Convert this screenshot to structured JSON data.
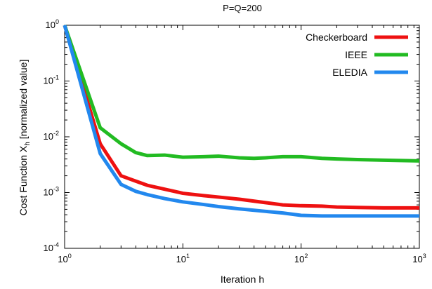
{
  "chart_data": {
    "type": "line",
    "title": "P=Q=200",
    "xlabel": "Iteration h",
    "ylabel_main": "Cost Function X",
    "ylabel_sub": "h",
    "ylabel_tail": " [normalized value]",
    "xscale": "log",
    "yscale": "log",
    "xlim": [
      1,
      1000
    ],
    "ylim": [
      0.0001,
      1
    ],
    "grid": false,
    "legend_position": "top-right",
    "x_ticks": [
      {
        "base": "10",
        "exp": "0",
        "value": 1
      },
      {
        "base": "10",
        "exp": "1",
        "value": 10
      },
      {
        "base": "10",
        "exp": "2",
        "value": 100
      },
      {
        "base": "10",
        "exp": "3",
        "value": 1000
      }
    ],
    "y_ticks": [
      {
        "base": "10",
        "exp": "-4",
        "value": 0.0001
      },
      {
        "base": "10",
        "exp": "-3",
        "value": 0.001
      },
      {
        "base": "10",
        "exp": "-2",
        "value": 0.01
      },
      {
        "base": "10",
        "exp": "-1",
        "value": 0.1
      },
      {
        "base": "10",
        "exp": "0",
        "value": 1
      }
    ],
    "series": [
      {
        "name": "Checkerboard",
        "color": "#ee1111",
        "points": [
          [
            1,
            1.0
          ],
          [
            2,
            0.0075
          ],
          [
            3,
            0.002
          ],
          [
            4,
            0.0016
          ],
          [
            5,
            0.00135
          ],
          [
            7,
            0.00115
          ],
          [
            10,
            0.00097
          ],
          [
            15,
            0.00088
          ],
          [
            20,
            0.00083
          ],
          [
            30,
            0.00076
          ],
          [
            50,
            0.00066
          ],
          [
            70,
            0.0006
          ],
          [
            100,
            0.00058
          ],
          [
            150,
            0.00057
          ],
          [
            200,
            0.00055
          ],
          [
            300,
            0.00054
          ],
          [
            500,
            0.00053
          ],
          [
            1000,
            0.00053
          ]
        ]
      },
      {
        "name": "IEEE",
        "color": "#22bb22",
        "points": [
          [
            1,
            1.0
          ],
          [
            2,
            0.0145
          ],
          [
            3,
            0.0075
          ],
          [
            4,
            0.0052
          ],
          [
            5,
            0.0046
          ],
          [
            7,
            0.0047
          ],
          [
            10,
            0.0043
          ],
          [
            15,
            0.0044
          ],
          [
            20,
            0.0045
          ],
          [
            30,
            0.0042
          ],
          [
            40,
            0.0041
          ],
          [
            50,
            0.0042
          ],
          [
            70,
            0.0044
          ],
          [
            100,
            0.0044
          ],
          [
            150,
            0.0041
          ],
          [
            200,
            0.004
          ],
          [
            300,
            0.0039
          ],
          [
            500,
            0.0038
          ],
          [
            1000,
            0.0037
          ]
        ]
      },
      {
        "name": "ELEDIA",
        "color": "#2288ee",
        "points": [
          [
            1,
            1.0
          ],
          [
            2,
            0.005
          ],
          [
            3,
            0.0014
          ],
          [
            4,
            0.00105
          ],
          [
            5,
            0.00092
          ],
          [
            7,
            0.00078
          ],
          [
            10,
            0.00068
          ],
          [
            15,
            0.00061
          ],
          [
            20,
            0.00056
          ],
          [
            30,
            0.00051
          ],
          [
            50,
            0.00046
          ],
          [
            70,
            0.00043
          ],
          [
            100,
            0.00039
          ],
          [
            150,
            0.00038
          ],
          [
            200,
            0.00038
          ],
          [
            300,
            0.00038
          ],
          [
            500,
            0.00038
          ],
          [
            1000,
            0.00038
          ]
        ]
      }
    ]
  }
}
